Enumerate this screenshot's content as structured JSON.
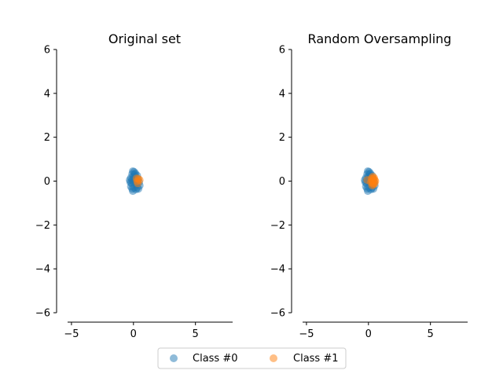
{
  "colors": {
    "class0": "#1f77b4",
    "class1": "#ff7f0e",
    "axis": "#000000",
    "legend_border": "#cccccc"
  },
  "legend": {
    "placement": "bottom-center",
    "entries": [
      "Class #0",
      "Class #1"
    ]
  },
  "chart_data": [
    {
      "type": "scatter",
      "title": "Original set",
      "xlabel": "",
      "ylabel": "",
      "xlim": [
        -6.2,
        8
      ],
      "ylim": [
        -6,
        6
      ],
      "xticks": [
        -5,
        0,
        5
      ],
      "xtick_labels": [
        "−5",
        "0",
        "5"
      ],
      "yticks": [
        -6,
        -4,
        -2,
        0,
        2,
        4,
        6
      ],
      "ytick_labels": [
        "−6",
        "−4",
        "−2",
        "0",
        "2",
        "4",
        "6"
      ],
      "grid": false,
      "alpha": 0.5,
      "series": [
        {
          "name": "Class #0",
          "color": "#1f77b4",
          "points": [
            [
              -0.05,
              0.45
            ],
            [
              0.05,
              0.42
            ],
            [
              0.1,
              0.3
            ],
            [
              -0.1,
              0.32
            ],
            [
              0.0,
              0.2
            ],
            [
              0.15,
              0.18
            ],
            [
              -0.2,
              0.15
            ],
            [
              -0.3,
              0.05
            ],
            [
              -0.25,
              -0.05
            ],
            [
              -0.15,
              -0.1
            ],
            [
              0.0,
              -0.05
            ],
            [
              0.1,
              0.0
            ],
            [
              0.2,
              0.05
            ],
            [
              0.25,
              -0.15
            ],
            [
              0.3,
              -0.3
            ],
            [
              0.4,
              -0.35
            ],
            [
              0.2,
              -0.38
            ],
            [
              0.05,
              -0.3
            ],
            [
              -0.1,
              -0.35
            ],
            [
              -0.05,
              -0.45
            ],
            [
              0.35,
              0.1
            ],
            [
              0.45,
              -0.05
            ],
            [
              0.5,
              -0.2
            ],
            [
              -0.2,
              -0.25
            ],
            [
              0.15,
              0.35
            ],
            [
              0.3,
              0.25
            ],
            [
              -0.1,
              0.05
            ],
            [
              0.05,
              0.1
            ]
          ]
        },
        {
          "name": "Class #1",
          "color": "#ff7f0e",
          "points": [
            [
              0.3,
              0.0
            ],
            [
              0.4,
              0.1
            ],
            [
              0.35,
              -0.1
            ],
            [
              0.5,
              0.05
            ],
            [
              0.25,
              0.12
            ]
          ]
        }
      ]
    },
    {
      "type": "scatter",
      "title": "Random Oversampling",
      "xlabel": "",
      "ylabel": "",
      "xlim": [
        -6.2,
        8
      ],
      "ylim": [
        -6,
        6
      ],
      "xticks": [
        -5,
        0,
        5
      ],
      "xtick_labels": [
        "−5",
        "0",
        "5"
      ],
      "yticks": [
        -6,
        -4,
        -2,
        0,
        2,
        4,
        6
      ],
      "ytick_labels": [
        "−6",
        "−4",
        "−2",
        "0",
        "2",
        "4",
        "6"
      ],
      "grid": false,
      "alpha": 0.5,
      "series": [
        {
          "name": "Class #0",
          "color": "#1f77b4",
          "points": [
            [
              -0.05,
              0.45
            ],
            [
              0.05,
              0.42
            ],
            [
              0.1,
              0.3
            ],
            [
              -0.1,
              0.32
            ],
            [
              0.0,
              0.2
            ],
            [
              0.15,
              0.18
            ],
            [
              -0.2,
              0.15
            ],
            [
              -0.3,
              0.05
            ],
            [
              -0.25,
              -0.05
            ],
            [
              -0.15,
              -0.1
            ],
            [
              0.0,
              -0.05
            ],
            [
              0.1,
              0.0
            ],
            [
              0.2,
              0.05
            ],
            [
              0.25,
              -0.15
            ],
            [
              0.3,
              -0.3
            ],
            [
              0.4,
              -0.35
            ],
            [
              0.2,
              -0.38
            ],
            [
              0.05,
              -0.3
            ],
            [
              -0.1,
              -0.35
            ],
            [
              -0.05,
              -0.45
            ],
            [
              0.35,
              0.1
            ],
            [
              0.45,
              -0.05
            ],
            [
              0.5,
              -0.2
            ],
            [
              -0.2,
              -0.25
            ],
            [
              0.15,
              0.35
            ],
            [
              0.3,
              0.25
            ],
            [
              -0.1,
              0.05
            ],
            [
              0.05,
              0.1
            ]
          ]
        },
        {
          "name": "Class #1",
          "color": "#ff7f0e",
          "points": [
            [
              -0.1,
              0.05
            ],
            [
              0.3,
              0.0
            ],
            [
              0.4,
              0.1
            ],
            [
              0.35,
              -0.1
            ],
            [
              0.5,
              0.05
            ],
            [
              0.25,
              0.12
            ],
            [
              0.3,
              -0.2
            ],
            [
              0.45,
              0.15
            ],
            [
              0.35,
              0.2
            ],
            [
              0.5,
              -0.1
            ],
            [
              0.2,
              -0.05
            ],
            [
              0.4,
              -0.15
            ],
            [
              0.55,
              0.0
            ]
          ]
        }
      ]
    }
  ]
}
